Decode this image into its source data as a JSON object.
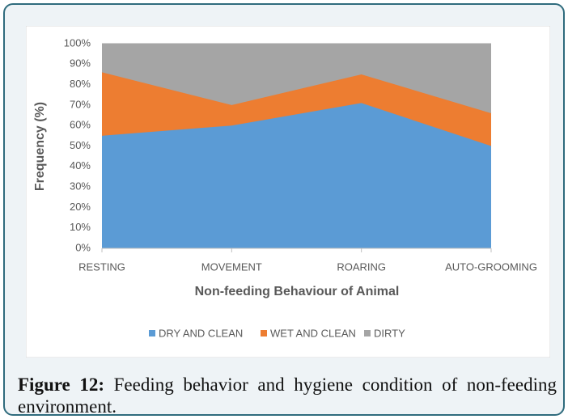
{
  "chart_data": {
    "type": "stacked_area",
    "categories": [
      "RESTING",
      "MOVEMENT",
      "ROARING",
      "AUTO-GROOMING"
    ],
    "series": [
      {
        "name": "DRY AND CLEAN",
        "color": "#5b9bd5",
        "values": [
          55,
          60,
          71,
          50
        ]
      },
      {
        "name": "WET AND CLEAN",
        "color": "#ed7d31",
        "values": [
          31,
          10,
          14,
          16
        ]
      },
      {
        "name": "DIRTY",
        "color": "#a5a5a5",
        "values": [
          14,
          30,
          15,
          34
        ]
      }
    ],
    "ylim": [
      0,
      100
    ],
    "yticks": [
      {
        "value": 0,
        "label": "0%"
      },
      {
        "value": 10,
        "label": "10%"
      },
      {
        "value": 20,
        "label": "20%"
      },
      {
        "value": 30,
        "label": "30%"
      },
      {
        "value": 40,
        "label": "40%"
      },
      {
        "value": 50,
        "label": "50%"
      },
      {
        "value": 60,
        "label": "60%"
      },
      {
        "value": 70,
        "label": "70%"
      },
      {
        "value": 80,
        "label": "80%"
      },
      {
        "value": 90,
        "label": "90%"
      },
      {
        "value": 100,
        "label": "100%"
      }
    ],
    "grid": true,
    "ylabel": "Frequency (%)",
    "xlabel": "Non-feeding Behaviour of Animal",
    "legend": "bottom"
  },
  "caption": {
    "label": "Figure 12:",
    "text": "Feeding behavior and hygiene condition of non-feeding environment."
  }
}
